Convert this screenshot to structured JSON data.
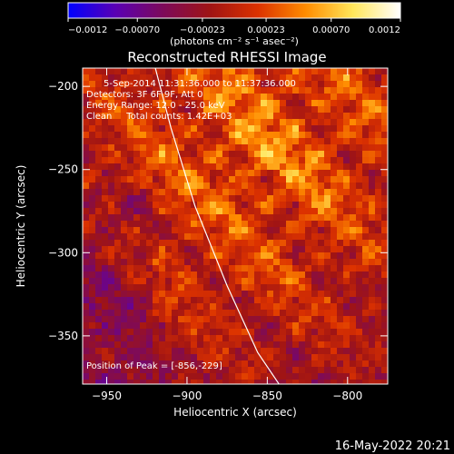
{
  "colorbar": {
    "ticks": [
      "-0.0012",
      "-0.00070",
      "-0.00023",
      "0.00023",
      "0.00070",
      "0.0012"
    ],
    "units": "(photons cm⁻² s⁻¹ asec⁻²)",
    "range": [
      -0.0012,
      0.0012
    ],
    "colors": [
      "#0000ff",
      "#5a00b4",
      "#7d0a5a",
      "#a01414",
      "#dc3200",
      "#ff8c00",
      "#ffe65a",
      "#ffffff"
    ]
  },
  "info": {
    "line1": "5-Sep-2014 11:31:36.000 to 11:37:36.000",
    "line2": "Detectors: 3F 6F 9F, Att 0",
    "line3": "Energy Range: 12.0 - 25.0 keV",
    "line4": "Clean     Total counts: 1.42E+03"
  },
  "peak_label": "Position of Peak = [-856,-229]",
  "footer_date": "16-May-2022 20:21",
  "chart_data": {
    "type": "heatmap",
    "title": "Reconstructed RHESSI Image",
    "xlabel": "Heliocentric X (arcsec)",
    "ylabel": "Heliocentric Y (arcsec)",
    "xlim": [
      -965,
      -775
    ],
    "ylim": [
      -379,
      -189
    ],
    "x_ticks": [
      -950,
      -900,
      -850,
      -800
    ],
    "y_ticks": [
      -200,
      -250,
      -300,
      -350
    ],
    "x_tick_labels": [
      "−950",
      "−900",
      "−850",
      "−800"
    ],
    "y_tick_labels": [
      "−200",
      "−250",
      "−300",
      "−350"
    ],
    "peak": [
      -856,
      -229
    ],
    "limb_curve": [
      [
        -920,
        -188
      ],
      [
        -910,
        -225
      ],
      [
        -895,
        -272
      ],
      [
        -875,
        -320
      ],
      [
        -856,
        -360
      ],
      [
        -842,
        -380
      ]
    ]
  }
}
